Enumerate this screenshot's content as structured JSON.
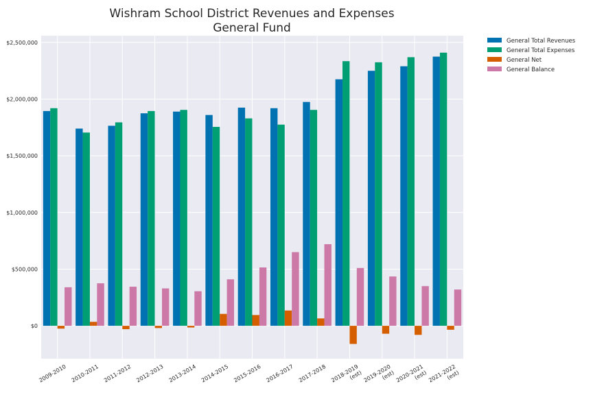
{
  "chart_data": {
    "type": "bar",
    "title": [
      "Wishram School District Revenues and Expenses",
      "General Fund"
    ],
    "xlabel": "",
    "ylabel": "",
    "ylim": [
      -290000,
      2560000
    ],
    "yticks": [
      0,
      500000,
      1000000,
      1500000,
      2000000,
      2500000
    ],
    "ytick_labels": [
      "$0",
      "$500,000",
      "$1,000,000",
      "$1,500,000",
      "$2,000,000",
      "$2,500,000"
    ],
    "grid": true,
    "legend_position": "outside-top-right",
    "categories": [
      [
        "2009-2010"
      ],
      [
        "2010-2011"
      ],
      [
        "2011-2012"
      ],
      [
        "2012-2013"
      ],
      [
        "2013-2014"
      ],
      [
        "2014-2015"
      ],
      [
        "2015-2016"
      ],
      [
        "2016-2017"
      ],
      [
        "2017-2018"
      ],
      [
        "2018-2019",
        "(est)"
      ],
      [
        "2019-2020",
        "(est)"
      ],
      [
        "2020-2021",
        "(est)"
      ],
      [
        "2021-2022",
        "(est)"
      ]
    ],
    "series": [
      {
        "name": "General Total Revenues",
        "color": "#0072b2",
        "values": [
          1895000,
          1740000,
          1765000,
          1875000,
          1890000,
          1860000,
          1925000,
          1920000,
          1975000,
          2175000,
          2250000,
          2290000,
          2375000
        ]
      },
      {
        "name": "General Total Expenses",
        "color": "#009e73",
        "values": [
          1920000,
          1705000,
          1795000,
          1895000,
          1905000,
          1755000,
          1830000,
          1775000,
          1905000,
          2335000,
          2325000,
          2370000,
          2410000
        ]
      },
      {
        "name": "General Net",
        "color": "#d55e00",
        "values": [
          -25000,
          35000,
          -30000,
          -20000,
          -15000,
          105000,
          95000,
          135000,
          65000,
          -160000,
          -70000,
          -80000,
          -35000
        ]
      },
      {
        "name": "General Balance",
        "color": "#cc79a7",
        "values": [
          340000,
          375000,
          345000,
          330000,
          305000,
          410000,
          515000,
          650000,
          720000,
          510000,
          435000,
          350000,
          320000
        ]
      }
    ]
  },
  "colors": {
    "plot_background": "#eaeaf2",
    "grid": "#ffffff",
    "text": "#262626"
  }
}
